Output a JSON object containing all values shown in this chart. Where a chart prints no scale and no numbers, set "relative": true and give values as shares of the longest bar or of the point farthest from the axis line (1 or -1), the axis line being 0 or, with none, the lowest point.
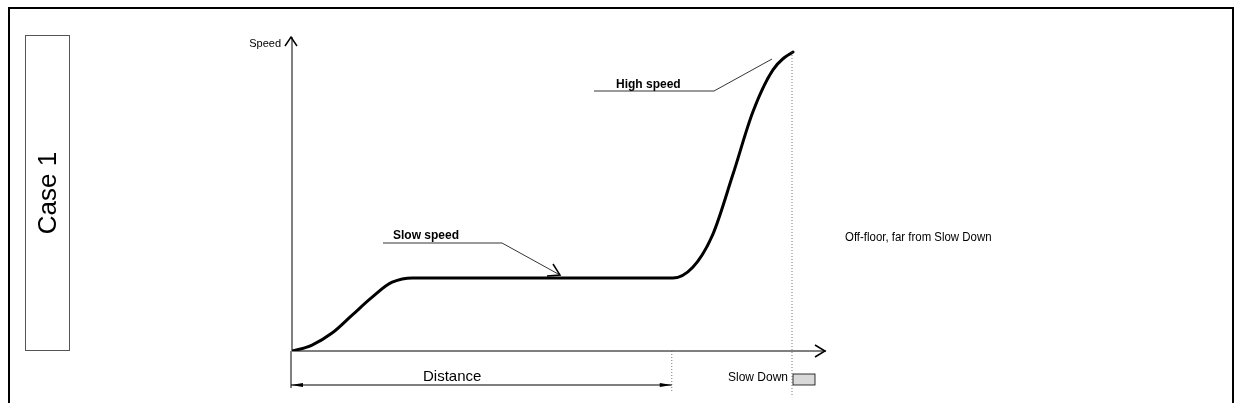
{
  "chart_data": {
    "type": "line",
    "title": "Case 1",
    "ylabel": "Speed",
    "annotations": [
      "Slow speed",
      "High speed",
      "Distance",
      "Slow Down",
      "Off-floor, far from Slow Down"
    ],
    "categories": [
      null,
      null,
      null,
      null,
      null,
      null,
      null,
      null,
      null,
      null,
      null,
      null,
      null,
      null,
      null,
      null,
      null,
      null,
      null,
      null,
      null,
      null,
      null,
      null,
      null,
      null
    ],
    "series": [
      {
        "color": "#000000",
        "values": [
          0,
          0.02,
          0.06,
          0.12,
          0.18,
          0.23,
          0.244,
          0.244,
          0.244,
          0.244,
          0.244,
          0.244,
          0.244,
          0.244,
          0.244,
          0.244,
          0.244,
          0.244,
          0.244,
          0.244,
          0.28,
          0.39,
          0.59,
          0.8,
          0.94,
          1
        ]
      }
    ],
    "relative": true,
    "grid": false,
    "legend": false,
    "tick_labels": false,
    "marker": "none",
    "line_style": "solid"
  }
}
